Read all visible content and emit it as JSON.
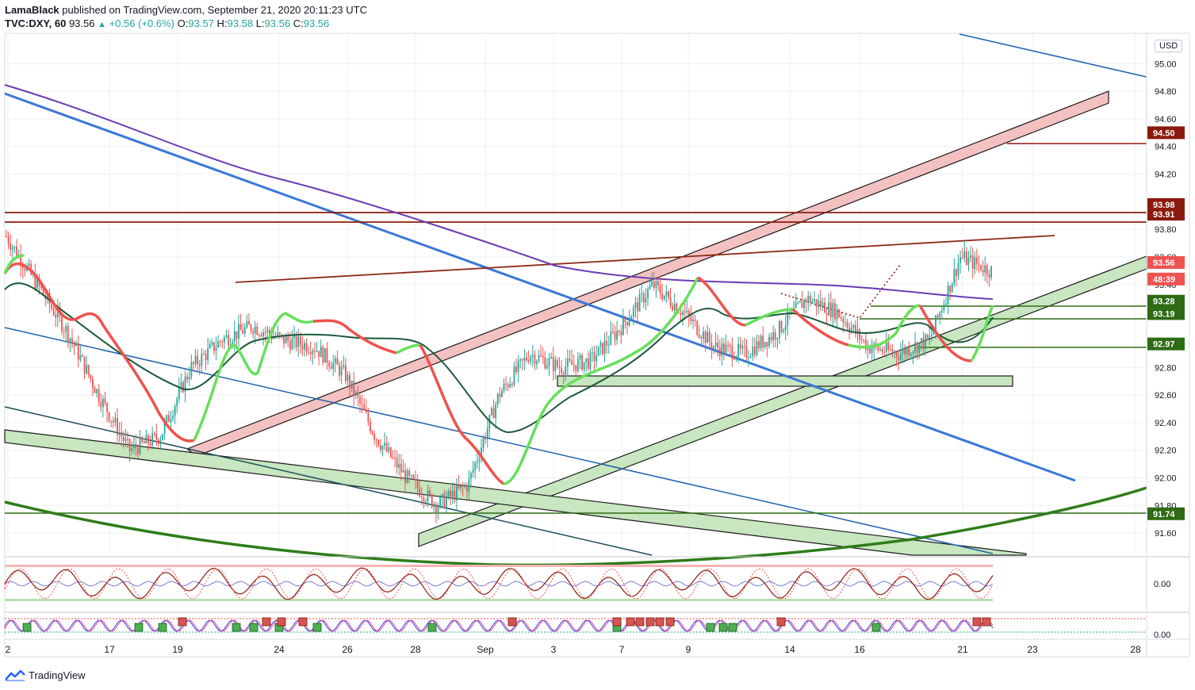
{
  "header": {
    "publisher": "LamaBlack",
    "published_text": "published on TradingView.com, September 21, 2020 20:11:23 UTC",
    "symbol": "TVC:DXY, 60",
    "last": "93.56",
    "change": "+0.56 (+0.6%)",
    "o_label": "O:",
    "o": "93.57",
    "h_label": "H:",
    "h": "93.58",
    "l_label": "L:",
    "l": "93.56",
    "c_label": "C:",
    "c": "93.56"
  },
  "currency": "USD",
  "footer": {
    "brand": "TradingView"
  },
  "colors": {
    "bull": "#26a69a",
    "bear": "#ef5350",
    "grid": "#eef0f3",
    "pink_channel": "#f4c1c1",
    "green_channel": "#c8e6c0",
    "blue_trend": "#3a78d6",
    "purple_ma": "#6a3cb5",
    "dark_green_ma": "#1d5a3a",
    "red_ma": "#f0524d",
    "light_green_ma": "#66e05a",
    "support_red": "#8b1a0e",
    "support_green": "#2e6b14"
  },
  "chart_data": {
    "type": "candlestick",
    "title": "",
    "xlabel": "",
    "ylabel": "",
    "ylim": [
      91.44,
      95.22
    ],
    "y_ticks": [
      "95.00",
      "94.80",
      "94.60",
      "94.40",
      "94.20",
      "93.80",
      "93.60",
      "93.40",
      "92.80",
      "92.60",
      "92.40",
      "92.20",
      "92.00",
      "91.80",
      "91.60"
    ],
    "x_ticks": [
      "2",
      "17",
      "19",
      "24",
      "26",
      "28",
      "Sep",
      "3",
      "7",
      "9",
      "14",
      "16",
      "21",
      "23",
      "28"
    ],
    "price_labels": [
      {
        "value": 94.5,
        "text": "94.50",
        "color": "#8b1a0e"
      },
      {
        "value": 93.98,
        "text": "93.98",
        "color": "#8b1a0e"
      },
      {
        "value": 93.91,
        "text": "93.91",
        "color": "#8b1a0e"
      },
      {
        "value": 93.56,
        "text": "93.56",
        "color": "#ef5350"
      },
      {
        "value": 93.44,
        "text": "48:39",
        "color": "#ef5350"
      },
      {
        "value": 93.28,
        "text": "93.28",
        "color": "#2e6b14"
      },
      {
        "value": 93.19,
        "text": "93.19",
        "color": "#2e6b14"
      },
      {
        "value": 92.97,
        "text": "92.97",
        "color": "#2e6b14"
      },
      {
        "value": 91.74,
        "text": "91.74",
        "color": "#2e6b14"
      }
    ],
    "series": [
      {
        "values": [
          93.75,
          93.4,
          93.05,
          92.6,
          92.2,
          92.3,
          92.8,
          93.0,
          93.1,
          93.0,
          92.95,
          92.75,
          92.3,
          92.0,
          91.8,
          91.95,
          92.6,
          92.9,
          92.8,
          92.85,
          93.1,
          93.4,
          93.2,
          92.95,
          92.9,
          93.05,
          93.3,
          93.2,
          92.95,
          92.9,
          93.0,
          93.6,
          93.5
        ]
      }
    ],
    "oscillator_1": {
      "ticks": [
        "0.00"
      ]
    },
    "oscillator_2": {
      "ticks": [
        "0.00"
      ]
    }
  }
}
